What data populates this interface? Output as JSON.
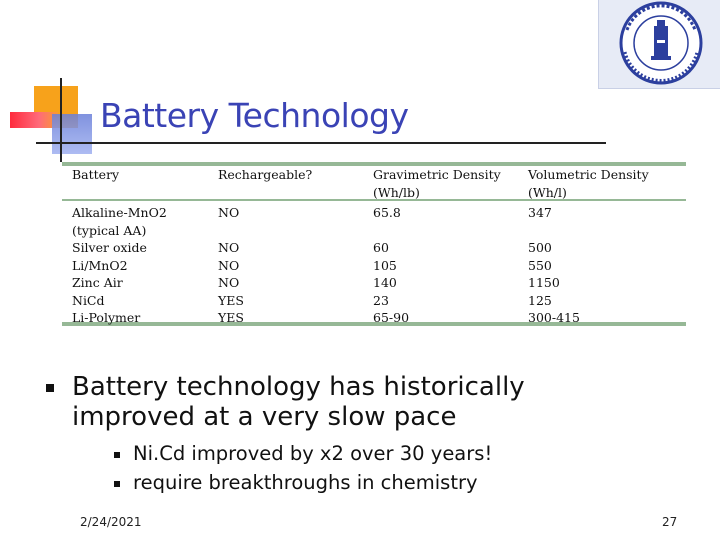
{
  "slide": {
    "title": "Battery Technology",
    "date": "2/24/2021",
    "page_number": "27"
  },
  "table": {
    "headers": [
      {
        "line1": "Battery",
        "line2": ""
      },
      {
        "line1": "Rechargeable?",
        "line2": ""
      },
      {
        "line1": "Gravimetric Density",
        "line2": "(Wh/lb)"
      },
      {
        "line1": "Volumetric Density",
        "line2": "(Wh/l)"
      }
    ],
    "rows": [
      {
        "battery": "Alkaline-MnO2",
        "battery_note": "(typical AA)",
        "rechargeable": "NO",
        "gravimetric": "65.8",
        "volumetric": "347"
      },
      {
        "battery": "Silver oxide",
        "rechargeable": "NO",
        "gravimetric": "60",
        "volumetric": "500"
      },
      {
        "battery": "Li/MnO2",
        "rechargeable": "NO",
        "gravimetric": "105",
        "volumetric": "550"
      },
      {
        "battery": "Zinc Air",
        "rechargeable": "NO",
        "gravimetric": "140",
        "volumetric": "1150"
      },
      {
        "battery": "NiCd",
        "rechargeable": "YES",
        "gravimetric": "23",
        "volumetric": "125"
      },
      {
        "battery": "Li-Polymer",
        "rechargeable": "YES",
        "gravimetric": "65-90",
        "volumetric": "300-415"
      }
    ]
  },
  "bullets": {
    "main": "Battery technology has historically improved at a very slow pace",
    "sub": [
      "Ni.Cd improved by x2 over 30 years!",
      "require breakthroughs in chemistry"
    ]
  },
  "colors": {
    "title": "#3a43b5",
    "table_rule": "#96b896",
    "logo_blue": "#2c3f9e"
  }
}
